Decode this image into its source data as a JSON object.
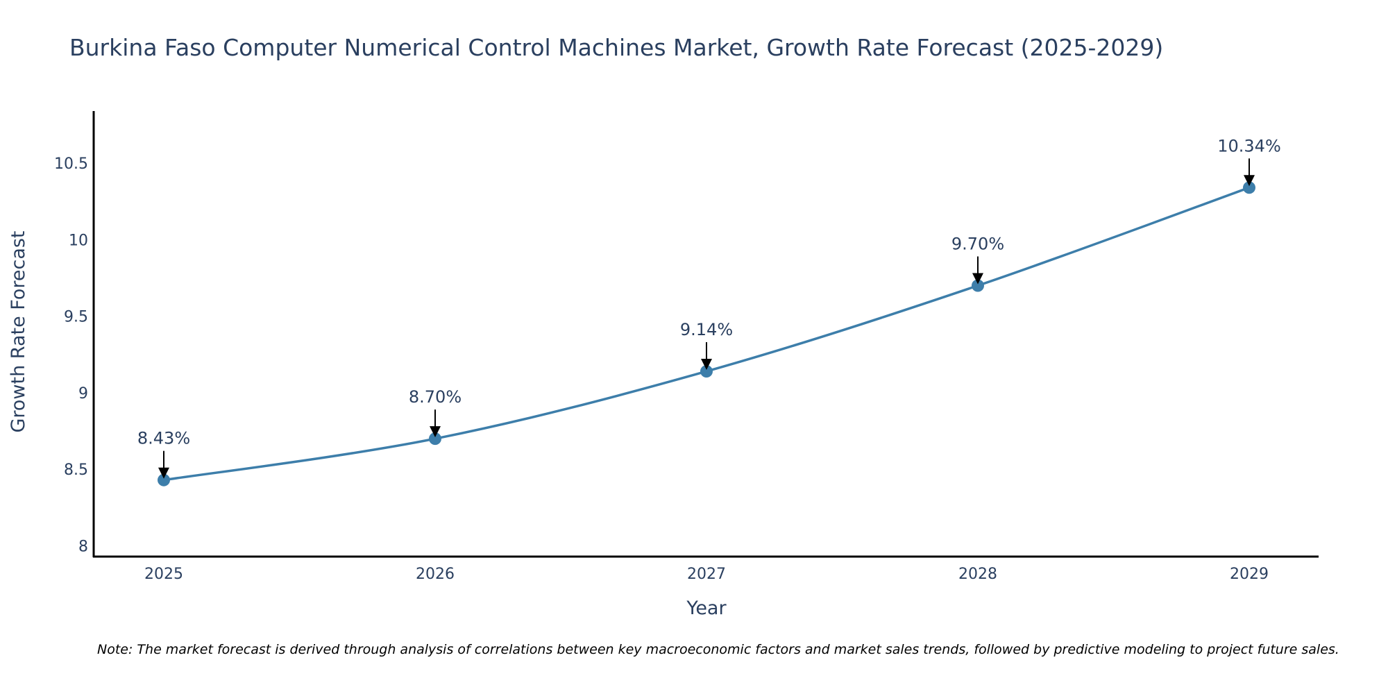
{
  "chart_data": {
    "type": "line",
    "title": "Burkina Faso Computer Numerical Control Machines Market, Growth Rate Forecast (2025-2029)",
    "xlabel": "Year",
    "ylabel": "Growth Rate Forecast",
    "categories": [
      "2025",
      "2026",
      "2027",
      "2028",
      "2029"
    ],
    "series": [
      {
        "name": "Growth Rate Forecast",
        "values": [
          8.43,
          8.7,
          9.14,
          9.7,
          10.34
        ]
      }
    ],
    "data_labels": [
      "8.43%",
      "8.70%",
      "9.14%",
      "9.70%",
      "10.34%"
    ],
    "y_ticks": [
      8,
      8.5,
      9,
      9.5,
      10,
      10.5
    ],
    "y_tick_labels": [
      "8",
      "8.5",
      "9",
      "9.5",
      "10",
      "10.5"
    ],
    "ylim": [
      7.93,
      10.84
    ],
    "grid": false,
    "line_color": "#3d7eaa",
    "note": "Note: The market forecast is derived through analysis of correlations between key macroeconomic factors and market sales trends, followed by predictive modeling to project future sales."
  }
}
